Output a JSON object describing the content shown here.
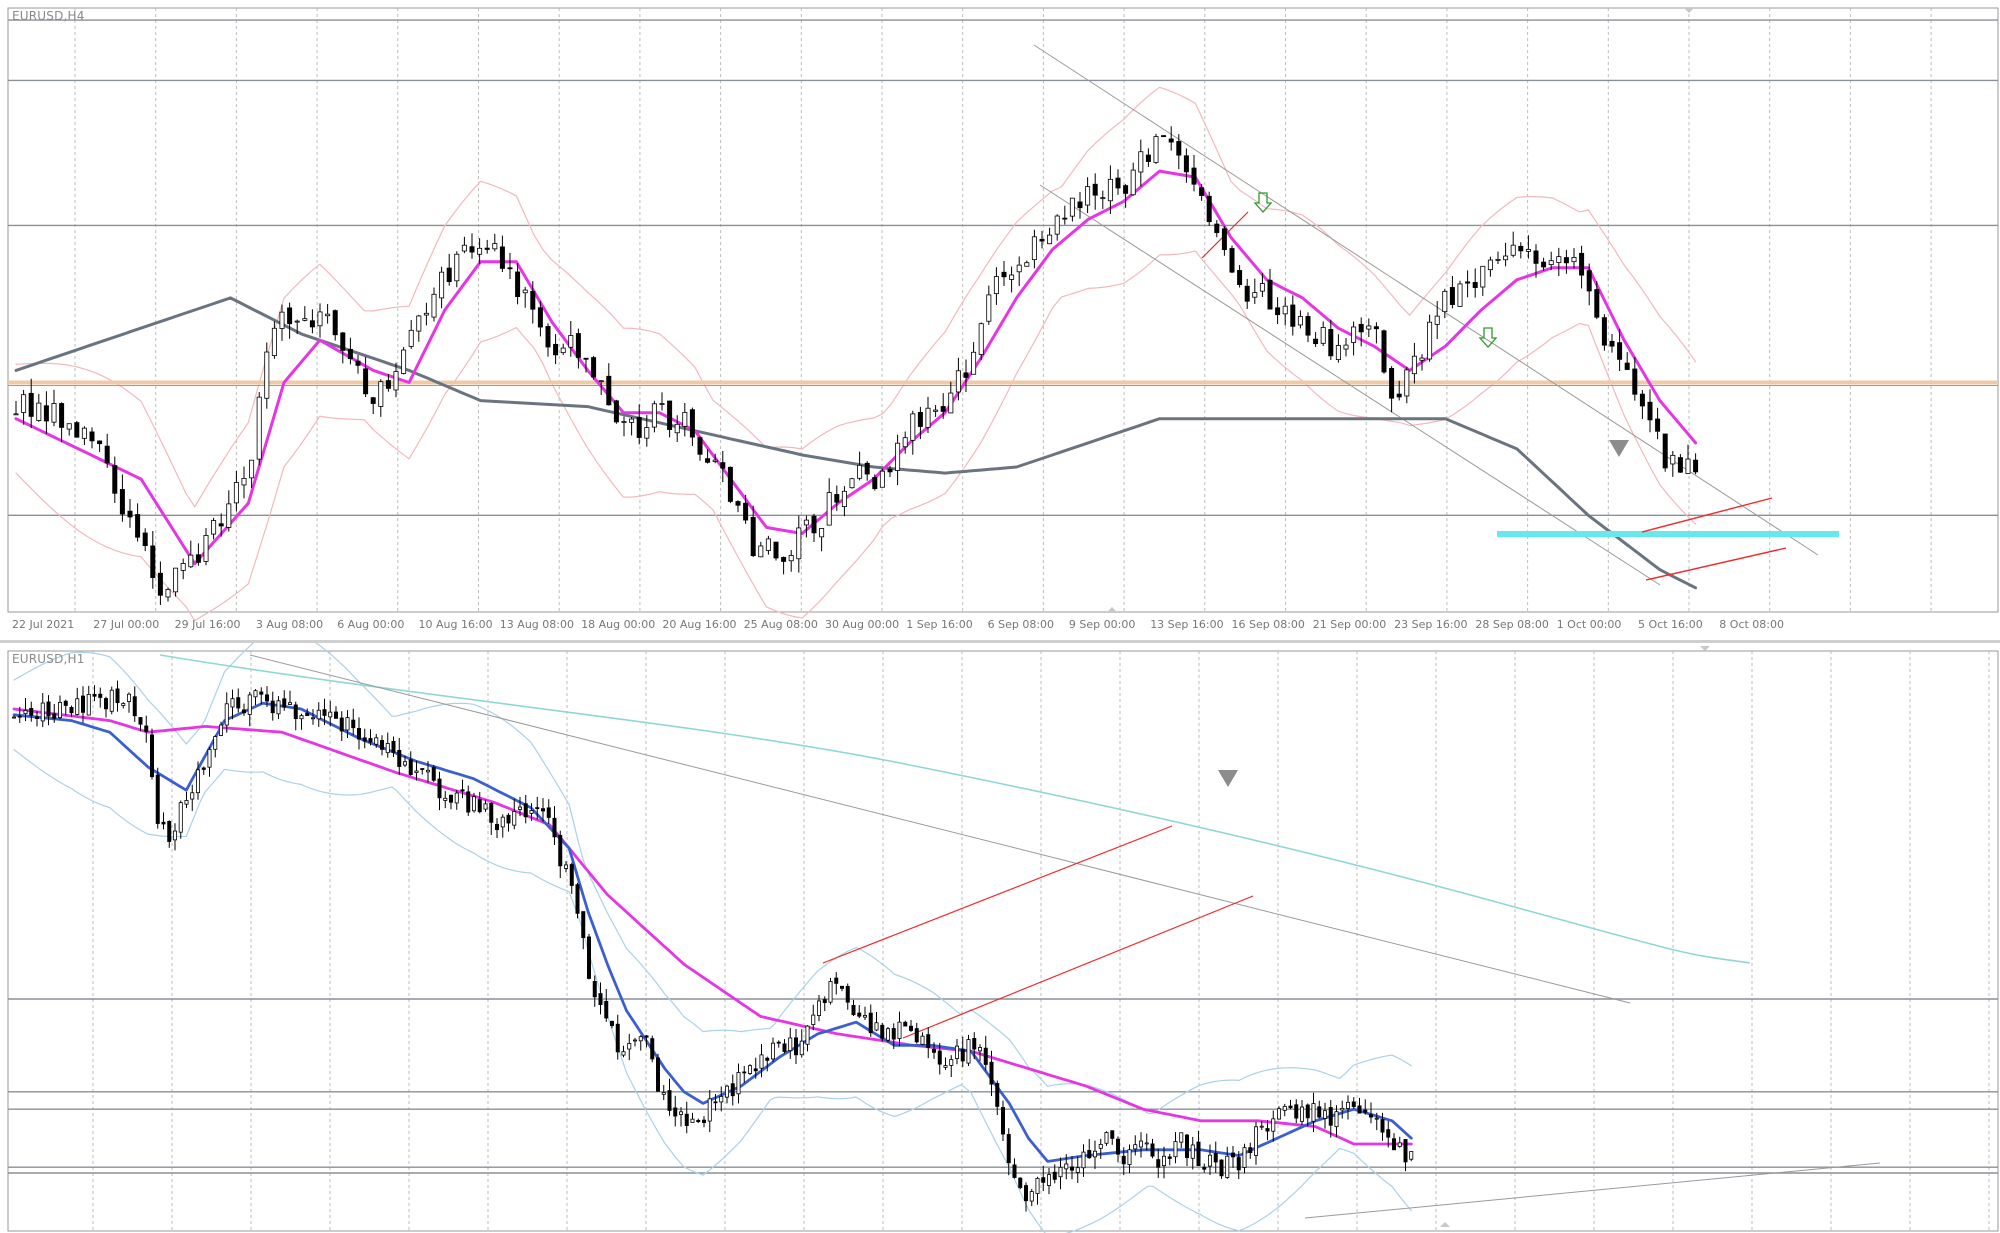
{
  "app": {
    "platform": "MetaTrader chart windows"
  },
  "colors": {
    "background": "#ffffff",
    "grid": "#bdbdbd",
    "candle_bull_body": "#ffffff",
    "candle_bear_body": "#000000",
    "candle_outline": "#000000",
    "ma_fast": "#e535e5",
    "ma_slow": "#6a7480",
    "bollinger_band": "#f4b8bc",
    "support_zone": "#66e8ee",
    "support_line": "#f2c9a5",
    "trend_channel": "#9a9a9a",
    "red_channel": "#ee2a2a",
    "signal_arrow": "#2c9a2c",
    "triangle_marker": "#8c8c8c",
    "blue_ma": "#3a5fd0",
    "cyan_ma": "#8fd7d7",
    "light_band": "#a9d2ea"
  },
  "charts": [
    {
      "title": "EURUSD,H4",
      "chart_data": {
        "type": "candlestick",
        "title": "EURUSD,H4",
        "xlabel": "",
        "ylabel": "",
        "grid": true,
        "x_tick_labels": [
          "22 Jul 2021",
          "27 Jul 00:00",
          "29 Jul 16:00",
          "3 Aug 08:00",
          "6 Aug 00:00",
          "10 Aug 16:00",
          "13 Aug 08:00",
          "18 Aug 00:00",
          "20 Aug 16:00",
          "25 Aug 08:00",
          "30 Aug 00:00",
          "1 Sep 16:00",
          "6 Sep 08:00",
          "9 Sep 00:00",
          "13 Sep 16:00",
          "16 Sep 08:00",
          "21 Sep 00:00",
          "23 Sep 16:00",
          "28 Sep 08:00",
          "1 Oct 00:00",
          "5 Oct 16:00",
          "8 Oct 08:00"
        ],
        "close_anchors": [
          [
            0,
            0.35
          ],
          [
            4,
            0.3
          ],
          [
            7,
            0.1
          ],
          [
            8,
            0.05
          ],
          [
            10,
            0.08
          ],
          [
            11,
            0.14
          ],
          [
            13,
            0.22
          ],
          [
            14,
            0.45
          ],
          [
            16,
            0.5
          ],
          [
            18,
            0.46
          ],
          [
            20,
            0.33
          ],
          [
            21,
            0.4
          ],
          [
            23,
            0.5
          ],
          [
            25,
            0.6
          ],
          [
            26,
            0.62
          ],
          [
            28,
            0.55
          ],
          [
            30,
            0.45
          ],
          [
            32,
            0.42
          ],
          [
            34,
            0.3
          ],
          [
            36,
            0.33
          ],
          [
            38,
            0.3
          ],
          [
            40,
            0.2
          ],
          [
            41,
            0.12
          ],
          [
            43,
            0.1
          ],
          [
            45,
            0.15
          ],
          [
            47,
            0.25
          ],
          [
            48,
            0.22
          ],
          [
            50,
            0.3
          ],
          [
            52,
            0.35
          ],
          [
            53,
            0.4
          ],
          [
            55,
            0.55
          ],
          [
            57,
            0.6
          ],
          [
            58,
            0.62
          ],
          [
            60,
            0.7
          ],
          [
            62,
            0.7
          ],
          [
            64,
            0.78
          ],
          [
            66,
            0.7
          ],
          [
            68,
            0.55
          ],
          [
            70,
            0.52
          ],
          [
            72,
            0.48
          ],
          [
            74,
            0.44
          ],
          [
            76,
            0.5
          ],
          [
            77,
            0.36
          ],
          [
            78,
            0.4
          ],
          [
            80,
            0.52
          ],
          [
            82,
            0.57
          ],
          [
            84,
            0.6
          ],
          [
            86,
            0.58
          ],
          [
            88,
            0.55
          ],
          [
            89,
            0.44
          ],
          [
            90,
            0.4
          ],
          [
            91,
            0.32
          ],
          [
            92,
            0.27
          ],
          [
            94,
            0.22
          ]
        ],
        "close_range": [
          1.1525,
          1.1915
        ],
        "ma_fast_anchors": [
          [
            0,
            0.32
          ],
          [
            7,
            0.22
          ],
          [
            10,
            0.08
          ],
          [
            13,
            0.18
          ],
          [
            15,
            0.38
          ],
          [
            17,
            0.45
          ],
          [
            20,
            0.4
          ],
          [
            22,
            0.38
          ],
          [
            24,
            0.5
          ],
          [
            26,
            0.58
          ],
          [
            28,
            0.58
          ],
          [
            30,
            0.48
          ],
          [
            32,
            0.4
          ],
          [
            34,
            0.33
          ],
          [
            36,
            0.33
          ],
          [
            38,
            0.3
          ],
          [
            40,
            0.22
          ],
          [
            42,
            0.14
          ],
          [
            44,
            0.13
          ],
          [
            46,
            0.18
          ],
          [
            48,
            0.22
          ],
          [
            50,
            0.28
          ],
          [
            52,
            0.33
          ],
          [
            54,
            0.42
          ],
          [
            56,
            0.52
          ],
          [
            58,
            0.6
          ],
          [
            60,
            0.65
          ],
          [
            62,
            0.68
          ],
          [
            64,
            0.73
          ],
          [
            66,
            0.72
          ],
          [
            68,
            0.62
          ],
          [
            70,
            0.55
          ],
          [
            72,
            0.52
          ],
          [
            74,
            0.47
          ],
          [
            76,
            0.44
          ],
          [
            78,
            0.4
          ],
          [
            80,
            0.44
          ],
          [
            82,
            0.5
          ],
          [
            84,
            0.55
          ],
          [
            86,
            0.57
          ],
          [
            88,
            0.57
          ],
          [
            90,
            0.45
          ],
          [
            92,
            0.35
          ],
          [
            94,
            0.28
          ]
        ],
        "ma_slow_anchors": [
          [
            0,
            0.4
          ],
          [
            8,
            0.48
          ],
          [
            12,
            0.52
          ],
          [
            16,
            0.46
          ],
          [
            22,
            0.4
          ],
          [
            26,
            0.35
          ],
          [
            32,
            0.34
          ],
          [
            38,
            0.3
          ],
          [
            44,
            0.26
          ],
          [
            48,
            0.24
          ],
          [
            52,
            0.23
          ],
          [
            56,
            0.24
          ],
          [
            60,
            0.28
          ],
          [
            64,
            0.32
          ],
          [
            68,
            0.32
          ],
          [
            72,
            0.32
          ],
          [
            76,
            0.32
          ],
          [
            80,
            0.32
          ],
          [
            84,
            0.27
          ],
          [
            88,
            0.16
          ],
          [
            92,
            0.07
          ],
          [
            94,
            0.04
          ]
        ],
        "horizontal_levels": [
          0.98,
          0.88,
          0.64,
          0.16
        ],
        "support_level": 0.38
      }
    },
    {
      "title": "EURUSD,H1",
      "chart_data": {
        "type": "candlestick",
        "title": "EURUSD,H1",
        "xlabel": "",
        "ylabel": "",
        "grid": true,
        "x_tick_labels": [],
        "close_anchors": [
          [
            0,
            0.88
          ],
          [
            8,
            0.91
          ],
          [
            12,
            0.92
          ],
          [
            14,
            0.86
          ],
          [
            15,
            0.72
          ],
          [
            16,
            0.68
          ],
          [
            18,
            0.74
          ],
          [
            20,
            0.8
          ],
          [
            22,
            0.9
          ],
          [
            26,
            0.92
          ],
          [
            30,
            0.89
          ],
          [
            34,
            0.88
          ],
          [
            38,
            0.84
          ],
          [
            42,
            0.79
          ],
          [
            46,
            0.75
          ],
          [
            50,
            0.71
          ],
          [
            54,
            0.72
          ],
          [
            56,
            0.7
          ],
          [
            58,
            0.6
          ],
          [
            60,
            0.45
          ],
          [
            62,
            0.35
          ],
          [
            64,
            0.3
          ],
          [
            66,
            0.33
          ],
          [
            68,
            0.22
          ],
          [
            70,
            0.19
          ],
          [
            72,
            0.2
          ],
          [
            74,
            0.24
          ],
          [
            76,
            0.26
          ],
          [
            78,
            0.3
          ],
          [
            80,
            0.33
          ],
          [
            82,
            0.3
          ],
          [
            84,
            0.4
          ],
          [
            86,
            0.42
          ],
          [
            88,
            0.38
          ],
          [
            90,
            0.34
          ],
          [
            92,
            0.35
          ],
          [
            94,
            0.33
          ],
          [
            96,
            0.31
          ],
          [
            98,
            0.3
          ],
          [
            100,
            0.32
          ],
          [
            102,
            0.27
          ],
          [
            104,
            0.12
          ],
          [
            106,
            0.06
          ],
          [
            108,
            0.09
          ],
          [
            110,
            0.11
          ],
          [
            112,
            0.14
          ],
          [
            114,
            0.16
          ],
          [
            116,
            0.13
          ],
          [
            118,
            0.15
          ],
          [
            120,
            0.12
          ],
          [
            122,
            0.15
          ],
          [
            124,
            0.13
          ],
          [
            126,
            0.11
          ],
          [
            128,
            0.12
          ],
          [
            130,
            0.17
          ],
          [
            132,
            0.21
          ],
          [
            134,
            0.2
          ],
          [
            136,
            0.22
          ],
          [
            138,
            0.19
          ],
          [
            140,
            0.23
          ],
          [
            142,
            0.2
          ],
          [
            144,
            0.14
          ],
          [
            146,
            0.12
          ]
        ],
        "close_range": [
          1.1525,
          1.164
        ],
        "ma_fast_anchors": [
          [
            0,
            0.89
          ],
          [
            6,
            0.88
          ],
          [
            10,
            0.86
          ],
          [
            14,
            0.8
          ],
          [
            18,
            0.76
          ],
          [
            22,
            0.88
          ],
          [
            26,
            0.91
          ],
          [
            30,
            0.9
          ],
          [
            36,
            0.85
          ],
          [
            42,
            0.81
          ],
          [
            48,
            0.78
          ],
          [
            54,
            0.73
          ],
          [
            58,
            0.66
          ],
          [
            60,
            0.55
          ],
          [
            62,
            0.46
          ],
          [
            64,
            0.38
          ],
          [
            66,
            0.33
          ],
          [
            68,
            0.28
          ],
          [
            70,
            0.24
          ],
          [
            72,
            0.22
          ],
          [
            76,
            0.25
          ],
          [
            80,
            0.3
          ],
          [
            84,
            0.34
          ],
          [
            88,
            0.36
          ],
          [
            92,
            0.32
          ],
          [
            96,
            0.32
          ],
          [
            100,
            0.31
          ],
          [
            104,
            0.22
          ],
          [
            106,
            0.16
          ],
          [
            108,
            0.12
          ],
          [
            112,
            0.13
          ],
          [
            118,
            0.14
          ],
          [
            124,
            0.14
          ],
          [
            128,
            0.13
          ],
          [
            132,
            0.16
          ],
          [
            136,
            0.19
          ],
          [
            140,
            0.21
          ],
          [
            144,
            0.19
          ],
          [
            146,
            0.16
          ]
        ],
        "ma_slow_anchors": [
          [
            0,
            0.9
          ],
          [
            10,
            0.88
          ],
          [
            14,
            0.86
          ],
          [
            20,
            0.87
          ],
          [
            28,
            0.86
          ],
          [
            40,
            0.79
          ],
          [
            50,
            0.74
          ],
          [
            56,
            0.7
          ],
          [
            62,
            0.58
          ],
          [
            70,
            0.46
          ],
          [
            78,
            0.37
          ],
          [
            86,
            0.34
          ],
          [
            94,
            0.32
          ],
          [
            100,
            0.31
          ],
          [
            106,
            0.28
          ],
          [
            112,
            0.25
          ],
          [
            118,
            0.21
          ],
          [
            124,
            0.19
          ],
          [
            130,
            0.19
          ],
          [
            136,
            0.18
          ],
          [
            140,
            0.15
          ],
          [
            144,
            0.15
          ],
          [
            146,
            0.15
          ]
        ],
        "horizontal_levels": [
          0.4,
          0.24,
          0.21,
          0.11,
          0.1
        ]
      }
    }
  ]
}
